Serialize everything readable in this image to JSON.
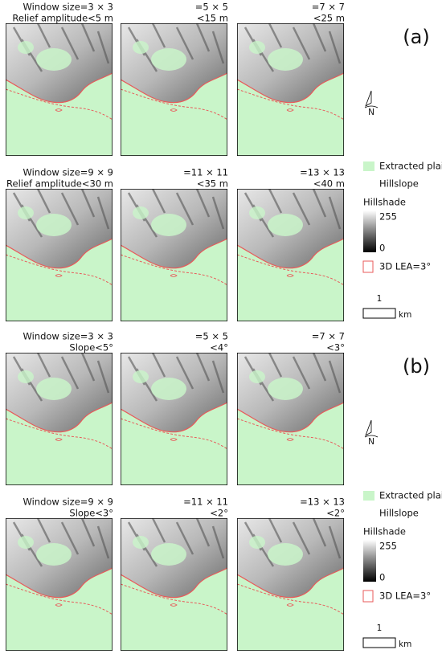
{
  "sections": [
    {
      "letter": "(a)",
      "north": "N",
      "panels": [
        {
          "top": "Window size=3 × 3",
          "bottom": "Relief amplitude<5 m"
        },
        {
          "top": "=5 × 5",
          "bottom": "<15 m"
        },
        {
          "top": "=7 × 7",
          "bottom": "<25 m"
        },
        {
          "top": "Window size=9 × 9",
          "bottom": "Relief amplitude<30 m"
        },
        {
          "top": "=11 × 11",
          "bottom": "<35 m"
        },
        {
          "top": "=13 × 13",
          "bottom": "<40 m"
        }
      ],
      "legend": {
        "plain": "Extracted plain",
        "hillslope": "Hillslope",
        "hillshade": "Hillshade",
        "max": "255",
        "min": "0",
        "lea": "3D LEA=3°"
      },
      "scale": {
        "value": "1",
        "unit": "km"
      }
    },
    {
      "letter": "(b)",
      "north": "N",
      "panels": [
        {
          "top": "Window size=3 × 3",
          "bottom": "Slope<5°"
        },
        {
          "top": "=5 × 5",
          "bottom": "<4°"
        },
        {
          "top": "=7 × 7",
          "bottom": "<3°"
        },
        {
          "top": "Window size=9 × 9",
          "bottom": "Slope<3°"
        },
        {
          "top": "=11 × 11",
          "bottom": "<2°"
        },
        {
          "top": "=13 × 13",
          "bottom": "<2°"
        }
      ],
      "legend": {
        "plain": "Extracted plain",
        "hillslope": "Hillslope",
        "hillshade": "Hillshade",
        "max": "255",
        "min": "0",
        "lea": "3D LEA=3°"
      },
      "scale": {
        "value": "1",
        "unit": "km"
      }
    }
  ]
}
